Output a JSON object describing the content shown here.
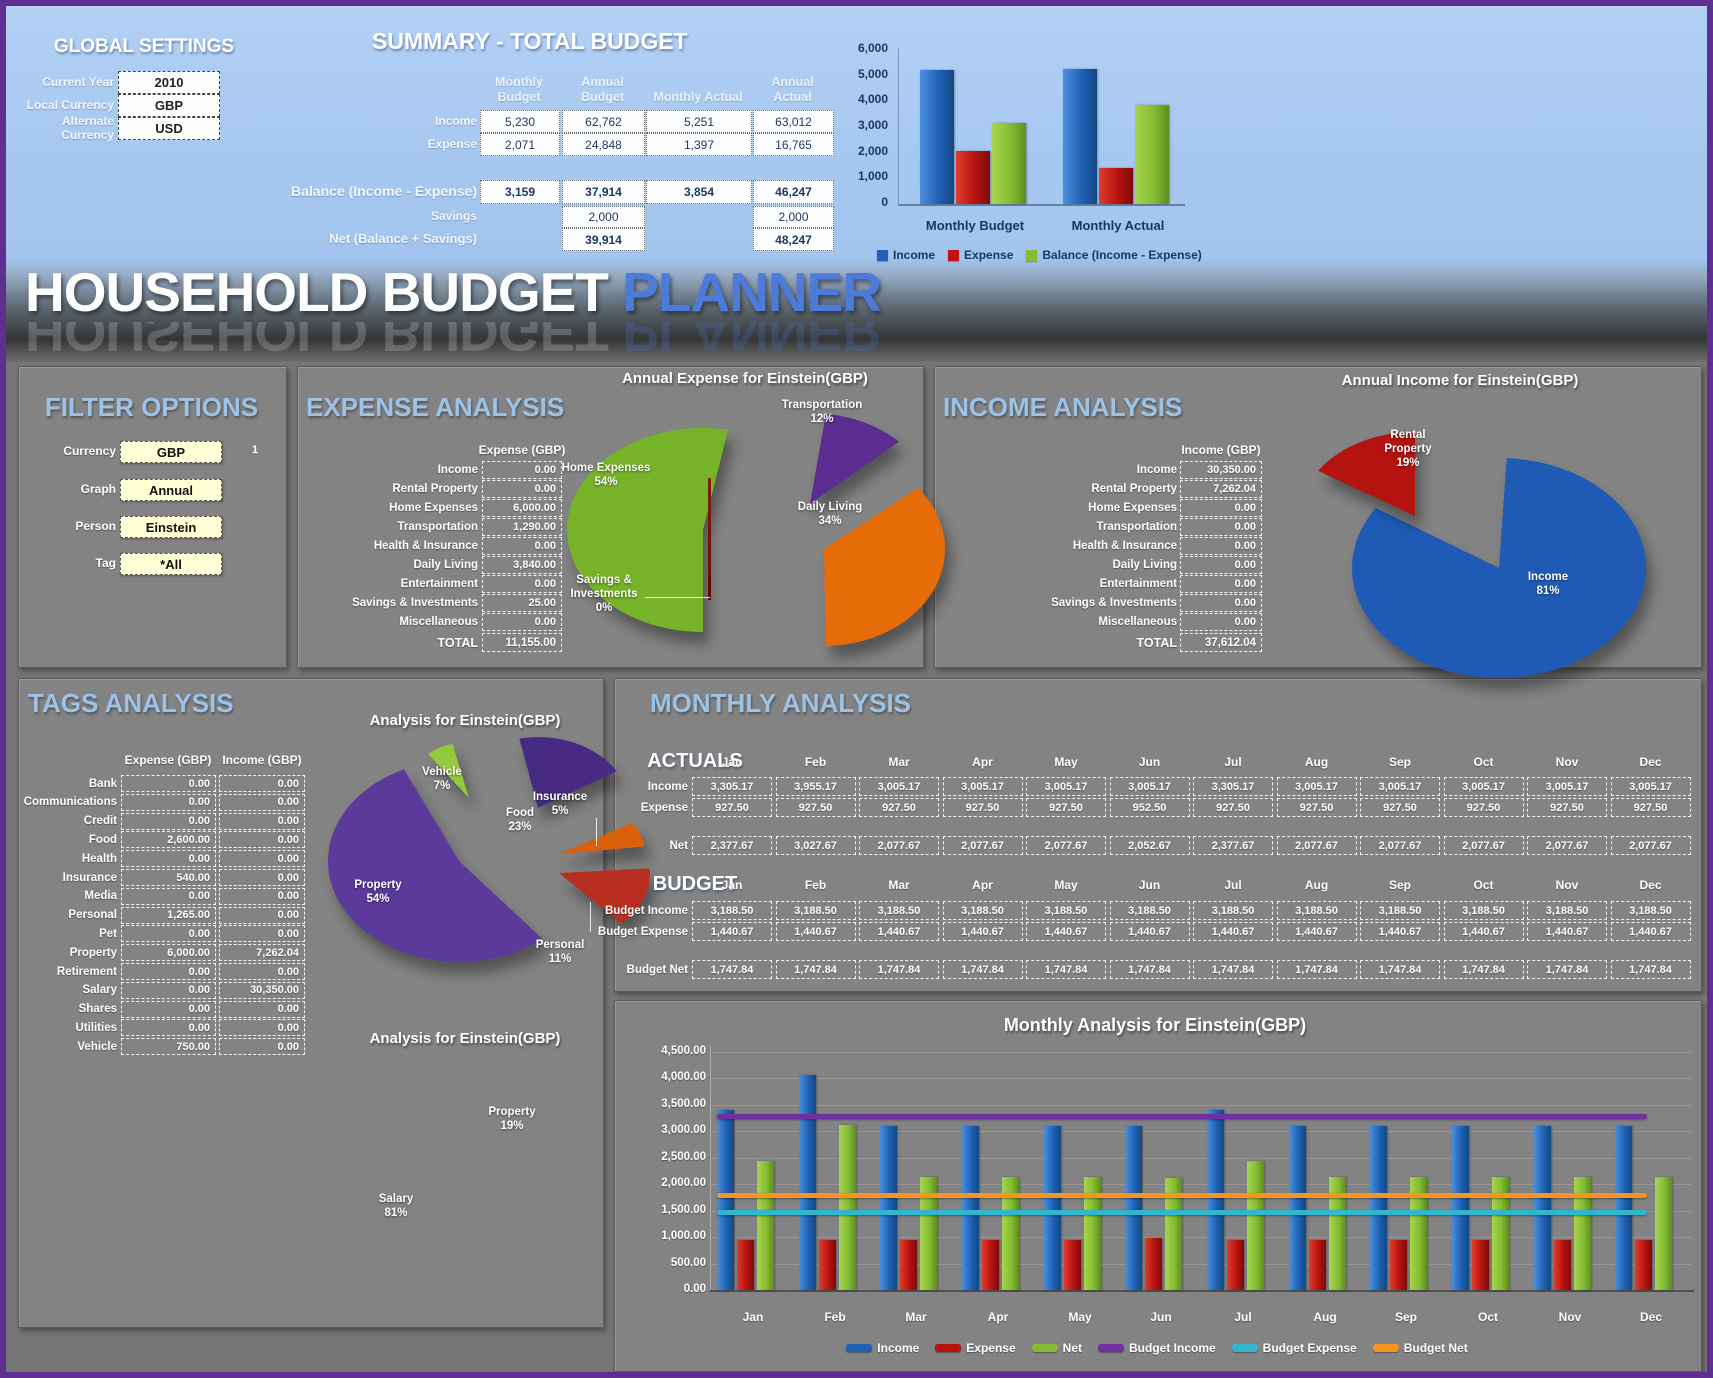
{
  "page": {
    "title_main": "HOUSEHOLD BUDGET",
    "title_accent": "PLANNER"
  },
  "global_settings": {
    "title": "GLOBAL SETTINGS",
    "fields": [
      {
        "label": "Current Year",
        "value": "2010"
      },
      {
        "label": "Local Currency",
        "value": "GBP"
      },
      {
        "label": "Alternate Currency",
        "value": "USD"
      }
    ]
  },
  "summary": {
    "title": "SUMMARY - TOTAL BUDGET",
    "columns": [
      "Monthly Budget",
      "Annual Budget",
      "Monthly Actual",
      "Annual Actual"
    ],
    "rows": [
      {
        "label": "Income",
        "values": [
          "5,230",
          "62,762",
          "5,251",
          "63,012"
        ],
        "bold": false
      },
      {
        "label": "Expense",
        "values": [
          "2,071",
          "24,848",
          "1,397",
          "16,765"
        ],
        "bold": false
      },
      {
        "label": "Balance (Income - Expense)",
        "values": [
          "3,159",
          "37,914",
          "3,854",
          "46,247"
        ],
        "bold": true
      },
      {
        "label": "Savings",
        "values": [
          "",
          "2,000",
          "",
          "2,000"
        ],
        "bold": false
      },
      {
        "label": "Net (Balance + Savings)",
        "values": [
          "",
          "39,914",
          "",
          "48,247"
        ],
        "bold": true
      }
    ]
  },
  "filter_options": {
    "title": "FILTER OPTIONS",
    "note": "1",
    "fields": [
      {
        "label": "Currency",
        "value": "GBP"
      },
      {
        "label": "Graph",
        "value": "Annual"
      },
      {
        "label": "Person",
        "value": "Einstein"
      },
      {
        "label": "Tag",
        "value": "*All"
      }
    ]
  },
  "expense_analysis": {
    "title": "EXPENSE ANALYSIS",
    "col_header": "Expense  (GBP)",
    "rows": [
      {
        "label": "Income",
        "value": "0.00"
      },
      {
        "label": "Rental Property",
        "value": "0.00"
      },
      {
        "label": "Home Expenses",
        "value": "6,000.00"
      },
      {
        "label": "Transportation",
        "value": "1,290.00"
      },
      {
        "label": "Health & Insurance",
        "value": "0.00"
      },
      {
        "label": "Daily Living",
        "value": "3,840.00"
      },
      {
        "label": "Entertainment",
        "value": "0.00"
      },
      {
        "label": "Savings & Investments",
        "value": "25.00"
      },
      {
        "label": "Miscellaneous",
        "value": "0.00"
      }
    ],
    "total_label": "TOTAL",
    "total_value": "11,155.00"
  },
  "income_analysis": {
    "title": "INCOME ANALYSIS",
    "col_header": "Income  (GBP)",
    "rows": [
      {
        "label": "Income",
        "value": "30,350.00"
      },
      {
        "label": "Rental Property",
        "value": "7,262.04"
      },
      {
        "label": "Home Expenses",
        "value": "0.00"
      },
      {
        "label": "Transportation",
        "value": "0.00"
      },
      {
        "label": "Health & Insurance",
        "value": "0.00"
      },
      {
        "label": "Daily Living",
        "value": "0.00"
      },
      {
        "label": "Entertainment",
        "value": "0.00"
      },
      {
        "label": "Savings & Investments",
        "value": "0.00"
      },
      {
        "label": "Miscellaneous",
        "value": "0.00"
      }
    ],
    "total_label": "TOTAL",
    "total_value": "37,612.04"
  },
  "tags_analysis": {
    "title": "TAGS ANALYSIS",
    "col_headers": [
      "Expense  (GBP)",
      "Income  (GBP)"
    ],
    "rows": [
      {
        "label": "Bank",
        "expense": "0.00",
        "income": "0.00"
      },
      {
        "label": "Communications",
        "expense": "0.00",
        "income": "0.00"
      },
      {
        "label": "Credit",
        "expense": "0.00",
        "income": "0.00"
      },
      {
        "label": "Food",
        "expense": "2,600.00",
        "income": "0.00"
      },
      {
        "label": "Health",
        "expense": "0.00",
        "income": "0.00"
      },
      {
        "label": "Insurance",
        "expense": "540.00",
        "income": "0.00"
      },
      {
        "label": "Media",
        "expense": "0.00",
        "income": "0.00"
      },
      {
        "label": "Personal",
        "expense": "1,265.00",
        "income": "0.00"
      },
      {
        "label": "Pet",
        "expense": "0.00",
        "income": "0.00"
      },
      {
        "label": "Property",
        "expense": "6,000.00",
        "income": "7,262.04"
      },
      {
        "label": "Retirement",
        "expense": "0.00",
        "income": "0.00"
      },
      {
        "label": "Salary",
        "expense": "0.00",
        "income": "30,350.00"
      },
      {
        "label": "Shares",
        "expense": "0.00",
        "income": "0.00"
      },
      {
        "label": "Utilities",
        "expense": "0.00",
        "income": "0.00"
      },
      {
        "label": "Vehicle",
        "expense": "750.00",
        "income": "0.00"
      }
    ]
  },
  "monthly_analysis": {
    "title": "MONTHLY ANALYSIS",
    "actuals_label": "ACTUALS",
    "budget_label": "BUDGET",
    "months": [
      "Jan",
      "Feb",
      "Mar",
      "Apr",
      "May",
      "Jun",
      "Jul",
      "Aug",
      "Sep",
      "Oct",
      "Nov",
      "Dec"
    ],
    "actual_rows": [
      {
        "label": "Income",
        "values": [
          "3,305.17",
          "3,955.17",
          "3,005.17",
          "3,005.17",
          "3,005.17",
          "3,005.17",
          "3,305.17",
          "3,005.17",
          "3,005.17",
          "3,005.17",
          "3,005.17",
          "3,005.17"
        ]
      },
      {
        "label": "Expense",
        "values": [
          "927.50",
          "927.50",
          "927.50",
          "927.50",
          "927.50",
          "952.50",
          "927.50",
          "927.50",
          "927.50",
          "927.50",
          "927.50",
          "927.50"
        ]
      }
    ],
    "net_row": {
      "label": "Net",
      "values": [
        "2,377.67",
        "3,027.67",
        "2,077.67",
        "2,077.67",
        "2,077.67",
        "2,052.67",
        "2,377.67",
        "2,077.67",
        "2,077.67",
        "2,077.67",
        "2,077.67",
        "2,077.67"
      ]
    },
    "budget_rows": [
      {
        "label": "Budget Income",
        "values": [
          "3,188.50",
          "3,188.50",
          "3,188.50",
          "3,188.50",
          "3,188.50",
          "3,188.50",
          "3,188.50",
          "3,188.50",
          "3,188.50",
          "3,188.50",
          "3,188.50",
          "3,188.50"
        ]
      },
      {
        "label": "Budget Expense",
        "values": [
          "1,440.67",
          "1,440.67",
          "1,440.67",
          "1,440.67",
          "1,440.67",
          "1,440.67",
          "1,440.67",
          "1,440.67",
          "1,440.67",
          "1,440.67",
          "1,440.67",
          "1,440.67"
        ]
      }
    ],
    "budget_net_row": {
      "label": "Budget Net",
      "values": [
        "1,747.84",
        "1,747.84",
        "1,747.84",
        "1,747.84",
        "1,747.84",
        "1,747.84",
        "1,747.84",
        "1,747.84",
        "1,747.84",
        "1,747.84",
        "1,747.84",
        "1,747.84"
      ]
    }
  },
  "chart_data": [
    {
      "id": "summary_bar",
      "type": "bar",
      "title": "",
      "categories": [
        "Monthly Budget",
        "Monthly Actual"
      ],
      "series": [
        {
          "name": "Income",
          "values": [
            5230,
            5251
          ],
          "color": "blue"
        },
        {
          "name": "Expense",
          "values": [
            2071,
            1397
          ],
          "color": "red"
        },
        {
          "name": "Balance (Income - Expense)",
          "values": [
            3159,
            3854
          ],
          "color": "green"
        }
      ],
      "ylim": [
        0,
        6000
      ],
      "y_ticks": [
        "6,000",
        "5,000",
        "4,000",
        "3,000",
        "2,000",
        "1,000",
        "0"
      ],
      "legend_position": "bottom"
    },
    {
      "id": "expense_pie",
      "type": "pie",
      "title": "Annual Expense for Einstein(GBP)",
      "slices": [
        {
          "label": "Home Expenses",
          "pct": 54,
          "color": "#76B329"
        },
        {
          "label": "Daily Living",
          "pct": 34,
          "color": "#E66C09"
        },
        {
          "label": "Transportation",
          "pct": 12,
          "color": "#5B2D90"
        },
        {
          "label": "Savings & Investments",
          "pct": 0,
          "color": "#8B1A10"
        }
      ]
    },
    {
      "id": "income_pie",
      "type": "pie",
      "title": "Annual Income for Einstein(GBP)",
      "slices": [
        {
          "label": "Income",
          "pct": 81,
          "color": "#1F5BB5"
        },
        {
          "label": "Rental Property",
          "pct": 19,
          "color": "#B51310"
        }
      ]
    },
    {
      "id": "tags_pie_expense",
      "type": "pie",
      "title": "Analysis for Einstein(GBP)",
      "slices": [
        {
          "label": "Property",
          "pct": 54,
          "color": "#5B3A9B"
        },
        {
          "label": "Food",
          "pct": 23,
          "color": "#472B82"
        },
        {
          "label": "Personal",
          "pct": 11,
          "color": "#B82E20"
        },
        {
          "label": "Vehicle",
          "pct": 7,
          "color": "#94C83D"
        },
        {
          "label": "Insurance",
          "pct": 5,
          "color": "#D9610B"
        }
      ]
    },
    {
      "id": "tags_pie_income",
      "type": "pie",
      "title": "Analysis for Einstein(GBP)",
      "slices": [
        {
          "label": "Salary",
          "pct": 81
        },
        {
          "label": "Property",
          "pct": 19
        }
      ]
    },
    {
      "id": "monthly_combo",
      "type": "bar",
      "title": "Monthly Analysis for Einstein(GBP)",
      "categories": [
        "Jan",
        "Feb",
        "Mar",
        "Apr",
        "May",
        "Jun",
        "Jul",
        "Aug",
        "Sep",
        "Oct",
        "Nov",
        "Dec"
      ],
      "series": [
        {
          "name": "Income",
          "kind": "bar",
          "color": "blue",
          "values": [
            3305.17,
            3955.17,
            3005.17,
            3005.17,
            3005.17,
            3005.17,
            3305.17,
            3005.17,
            3005.17,
            3005.17,
            3005.17,
            3005.17
          ]
        },
        {
          "name": "Expense",
          "kind": "bar",
          "color": "red",
          "values": [
            927.5,
            927.5,
            927.5,
            927.5,
            927.5,
            952.5,
            927.5,
            927.5,
            927.5,
            927.5,
            927.5,
            927.5
          ]
        },
        {
          "name": "Net",
          "kind": "bar",
          "color": "green",
          "values": [
            2377.67,
            3027.67,
            2077.67,
            2077.67,
            2077.67,
            2052.67,
            2377.67,
            2077.67,
            2077.67,
            2077.67,
            2077.67,
            2077.67
          ]
        },
        {
          "name": "Budget Income",
          "kind": "line",
          "color": "#7030A0",
          "values": [
            3188.5,
            3188.5,
            3188.5,
            3188.5,
            3188.5,
            3188.5,
            3188.5,
            3188.5,
            3188.5,
            3188.5,
            3188.5,
            3188.5
          ]
        },
        {
          "name": "Budget Expense",
          "kind": "line",
          "color": "#31B6CE",
          "values": [
            1440.67,
            1440.67,
            1440.67,
            1440.67,
            1440.67,
            1440.67,
            1440.67,
            1440.67,
            1440.67,
            1440.67,
            1440.67,
            1440.67
          ]
        },
        {
          "name": "Budget Net",
          "kind": "line",
          "color": "#F79421",
          "values": [
            1747.84,
            1747.84,
            1747.84,
            1747.84,
            1747.84,
            1747.84,
            1747.84,
            1747.84,
            1747.84,
            1747.84,
            1747.84,
            1747.84
          ]
        }
      ],
      "ylim": [
        0,
        4500
      ],
      "y_ticks": [
        "4,500.00",
        "4,000.00",
        "3,500.00",
        "3,000.00",
        "2,500.00",
        "2,000.00",
        "1,500.00",
        "1,000.00",
        "500.00",
        "0.00"
      ],
      "legend_position": "bottom"
    }
  ]
}
